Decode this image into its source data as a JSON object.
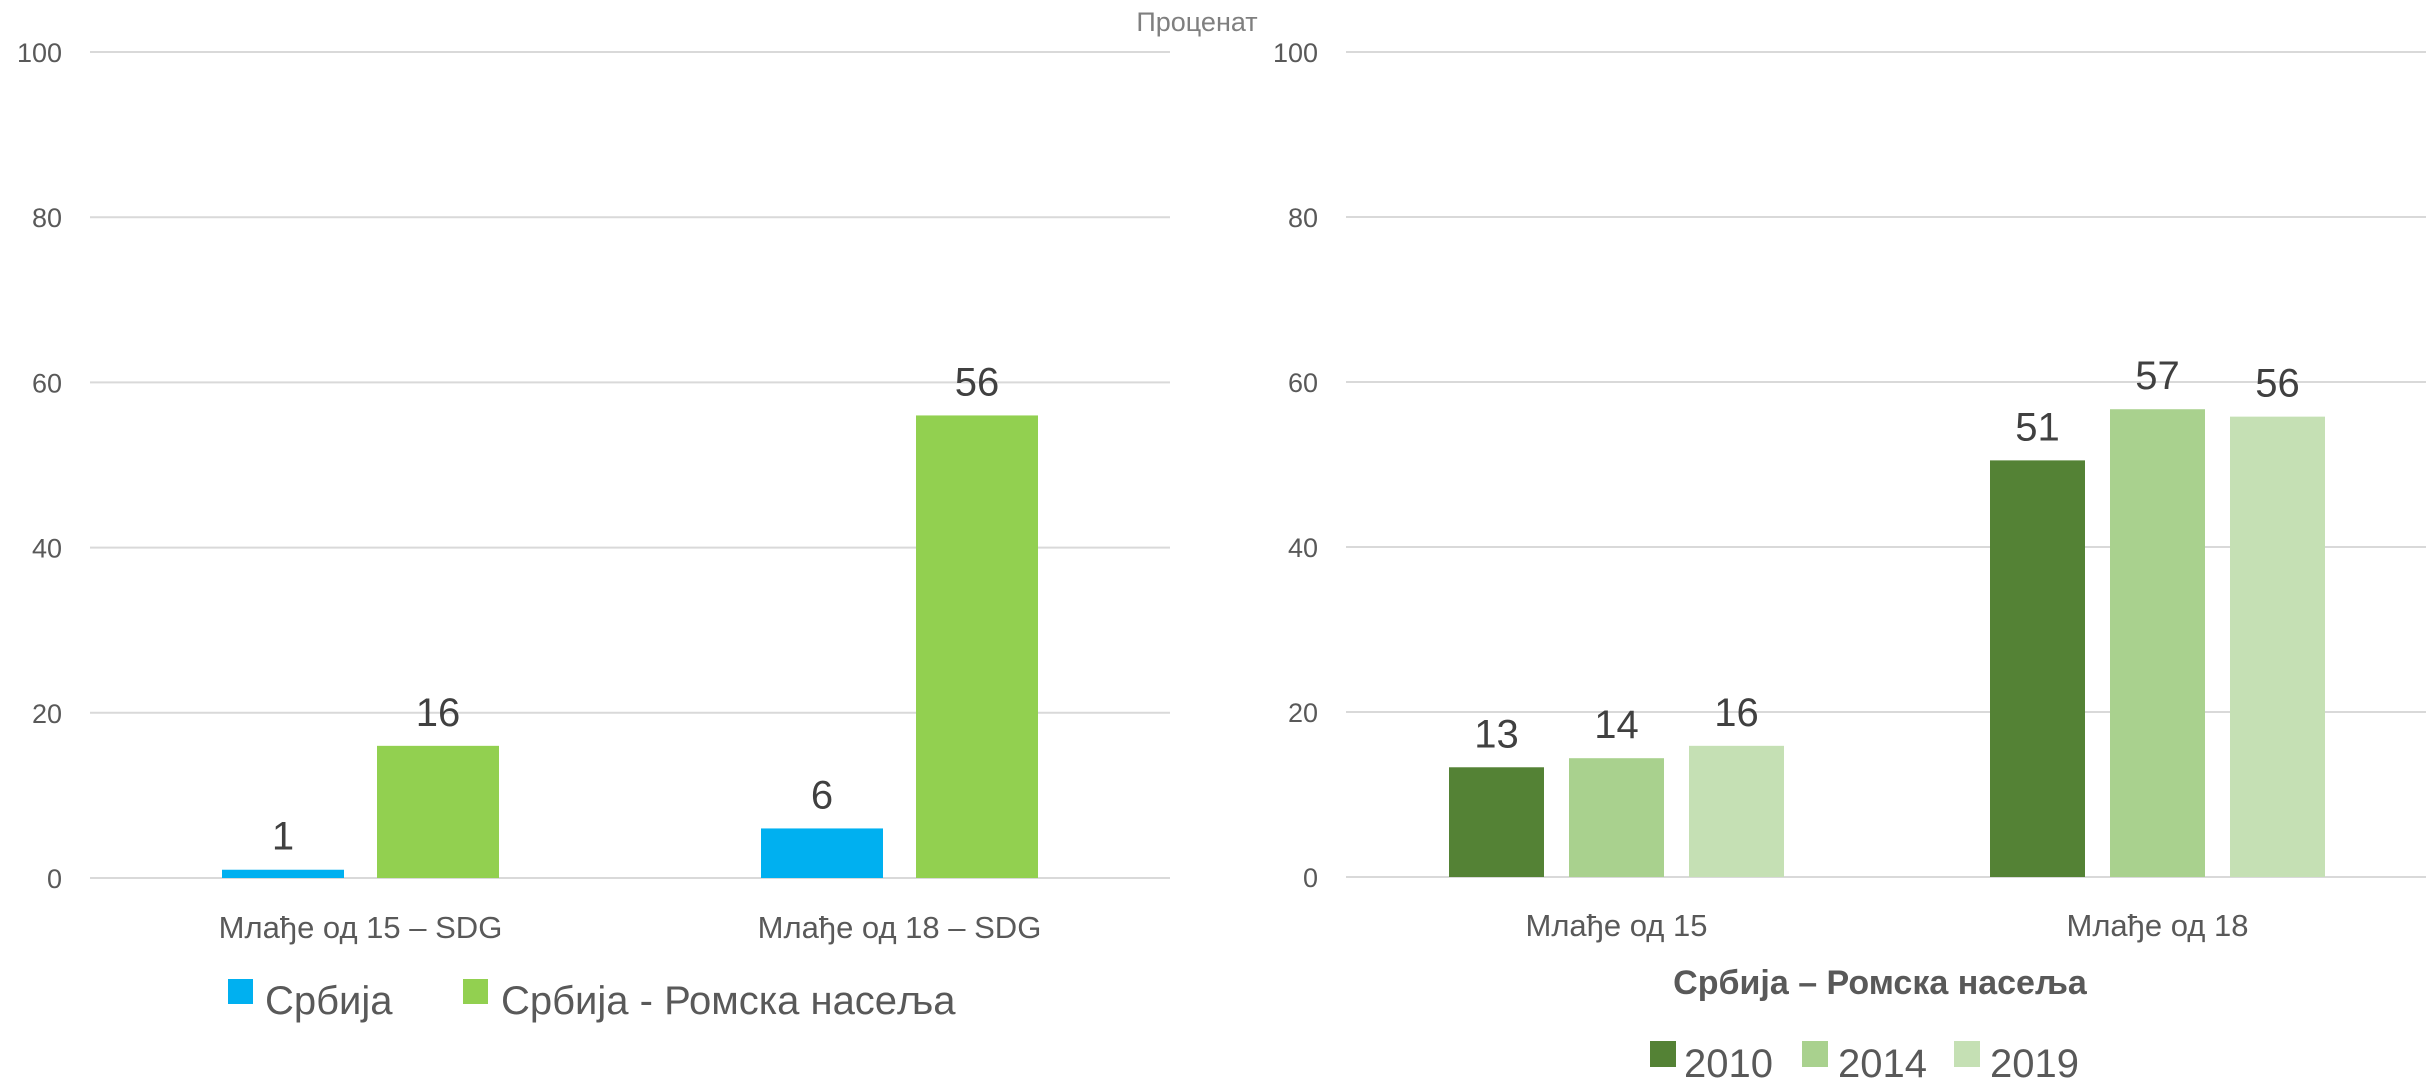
{
  "unit_label": "Проценат",
  "chart_data": [
    {
      "type": "bar",
      "categories": [
        "Млађе од 15 – SDG",
        "Млађе од 18 – SDG"
      ],
      "series": [
        {
          "name": "Србија",
          "values": [
            1,
            6
          ],
          "color": "#00b0f0"
        },
        {
          "name": "Србија - Ромска насеља",
          "values": [
            16,
            56
          ],
          "color": "#92d050"
        }
      ],
      "data_labels": [
        [
          "1",
          "6"
        ],
        [
          "16",
          "56"
        ]
      ],
      "ylim": [
        0,
        100
      ],
      "yticks": [
        0,
        20,
        40,
        60,
        80,
        100
      ],
      "ylabel": "Проценат",
      "title": "",
      "grid": true,
      "legend": "bottom"
    },
    {
      "type": "bar",
      "categories": [
        "Млађе од 15",
        "Млађе од 18"
      ],
      "series": [
        {
          "name": "2010",
          "values": [
            13.3,
            50.5
          ],
          "color": "#548235"
        },
        {
          "name": "2014",
          "values": [
            14.4,
            56.7
          ],
          "color": "#a9d18e"
        },
        {
          "name": "2019",
          "values": [
            15.9,
            55.8
          ],
          "color": "#c5e0b4"
        }
      ],
      "data_labels": [
        [
          "13",
          "51"
        ],
        [
          "14",
          "57"
        ],
        [
          "16",
          "56"
        ]
      ],
      "ylim": [
        0,
        100
      ],
      "yticks": [
        0,
        20,
        40,
        60,
        80,
        100
      ],
      "subtitle": "Србија – Ромска насеља",
      "title": "",
      "grid": true,
      "legend": "bottom"
    }
  ]
}
